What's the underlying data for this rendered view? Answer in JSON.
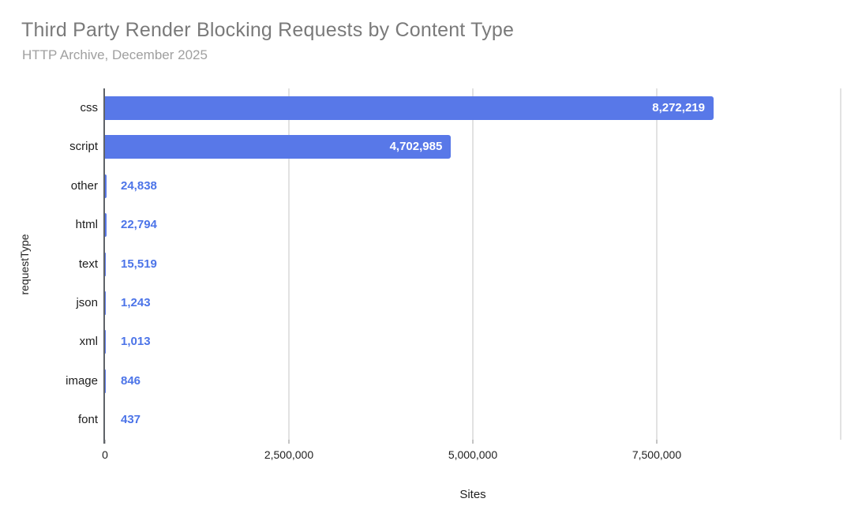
{
  "page": {
    "background": "#ffffff"
  },
  "chart_data": {
    "type": "bar",
    "orientation": "horizontal",
    "title": "Third Party Render Blocking Requests by Content Type",
    "subtitle": "HTTP Archive, December 2025",
    "xlabel": "Sites",
    "ylabel": "requestType",
    "categories": [
      "css",
      "script",
      "other",
      "html",
      "text",
      "json",
      "xml",
      "image",
      "font"
    ],
    "values": [
      8272219,
      4702985,
      24838,
      22794,
      15519,
      1243,
      1013,
      846,
      437
    ],
    "value_labels": [
      "8,272,219",
      "4,702,985",
      "24,838",
      "22,794",
      "15,519",
      "1,243",
      "1,013",
      "846",
      "437"
    ],
    "xlim": [
      0,
      10000000
    ],
    "x_ticks": [
      0,
      2500000,
      5000000,
      7500000
    ],
    "x_tick_labels": [
      "0",
      "2,500,000",
      "5,000,000",
      "7,500,000"
    ],
    "x_gridlines": [
      2500000,
      5000000,
      7500000,
      10000000
    ],
    "grid": true,
    "legend": "none",
    "series_color": "#5878e8",
    "inside_label_color": "#ffffff",
    "outside_label_color": "#4c74e8"
  }
}
